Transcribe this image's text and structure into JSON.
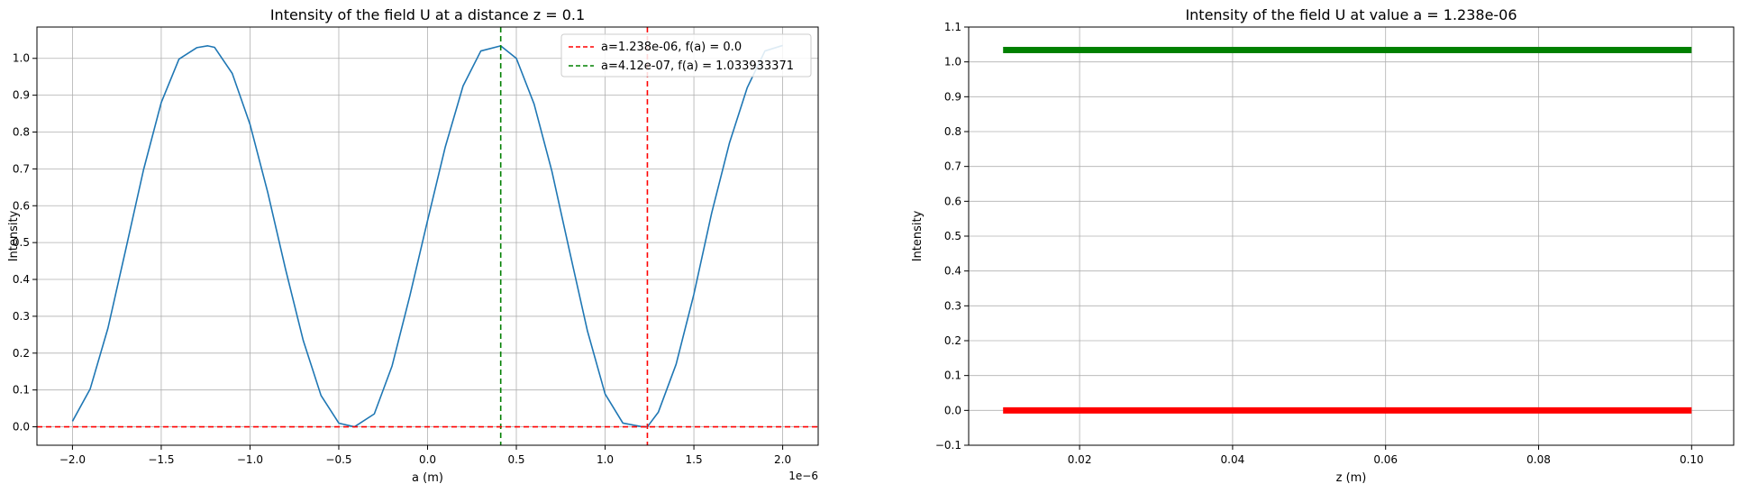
{
  "chart_data": [
    {
      "type": "line",
      "title": "Intensity of the field U at a distance z = 0.1",
      "xlabel": "a (m)",
      "ylabel": "Intensity",
      "x_offset_label": "1e−6",
      "xlim": [
        -2.2,
        2.2
      ],
      "ylim": [
        -0.05,
        1.085
      ],
      "x_ticks": [
        -2.0,
        -1.5,
        -1.0,
        -0.5,
        0.0,
        0.5,
        1.0,
        1.5,
        2.0
      ],
      "x_tick_labels": [
        "−2.0",
        "−1.5",
        "−1.0",
        "−0.5",
        "0.0",
        "0.5",
        "1.0",
        "1.5",
        "2.0"
      ],
      "y_ticks": [
        0.0,
        0.1,
        0.2,
        0.3,
        0.4,
        0.5,
        0.6,
        0.7,
        0.8,
        0.9,
        1.0
      ],
      "y_tick_labels": [
        "0.0",
        "0.1",
        "0.2",
        "0.3",
        "0.4",
        "0.5",
        "0.6",
        "0.7",
        "0.8",
        "0.9",
        "1.0"
      ],
      "grid": true,
      "legend_position": "top-right",
      "series": [
        {
          "color": "#1f77b4",
          "x": [
            -2.0,
            -1.9,
            -1.8,
            -1.7,
            -1.6,
            -1.5,
            -1.4,
            -1.3,
            -1.238,
            -1.2,
            -1.1,
            -1.0,
            -0.9,
            -0.8,
            -0.7,
            -0.6,
            -0.5,
            -0.412,
            -0.3,
            -0.2,
            -0.1,
            0.0,
            0.1,
            0.2,
            0.3,
            0.412,
            0.5,
            0.6,
            0.7,
            0.8,
            0.9,
            1.0,
            1.1,
            1.2,
            1.238,
            1.3,
            1.4,
            1.5,
            1.6,
            1.7,
            1.8,
            1.9,
            2.0
          ],
          "y": [
            0.015,
            0.103,
            0.268,
            0.481,
            0.697,
            0.88,
            0.998,
            1.029,
            1.034,
            1.03,
            0.959,
            0.821,
            0.636,
            0.428,
            0.234,
            0.085,
            0.01,
            0.0,
            0.035,
            0.165,
            0.355,
            0.56,
            0.76,
            0.925,
            1.02,
            1.034,
            1.0,
            0.876,
            0.694,
            0.476,
            0.261,
            0.089,
            0.01,
            0.001,
            0.0,
            0.04,
            0.17,
            0.36,
            0.58,
            0.77,
            0.92,
            1.02,
            1.035
          ]
        },
        {
          "name": "a=1.238e-06, f(a) = 0.0",
          "color": "#ff0000",
          "style": "dashed",
          "kind": "vline",
          "x": 1.238
        },
        {
          "name": "a=4.12e-07, f(a) = 1.033933371",
          "color": "#008000",
          "style": "dashed",
          "kind": "vline",
          "x": 0.412
        },
        {
          "color": "#ff0000",
          "style": "dashed",
          "kind": "hline",
          "y": 0.0
        }
      ]
    },
    {
      "type": "line",
      "title": "Intensity of the field U at value a = 1.238e-06",
      "xlabel": "z (m)",
      "ylabel": "Intensity",
      "xlim": [
        0.0055,
        0.1055
      ],
      "ylim": [
        -0.1,
        1.1
      ],
      "x_ticks": [
        0.02,
        0.04,
        0.06,
        0.08,
        0.1
      ],
      "x_tick_labels": [
        "0.02",
        "0.04",
        "0.06",
        "0.08",
        "0.10"
      ],
      "y_ticks": [
        -0.1,
        0.0,
        0.1,
        0.2,
        0.3,
        0.4,
        0.5,
        0.6,
        0.7,
        0.8,
        0.9,
        1.0,
        1.1
      ],
      "y_tick_labels": [
        "−0.1",
        "0.0",
        "0.1",
        "0.2",
        "0.3",
        "0.4",
        "0.5",
        "0.6",
        "0.7",
        "0.8",
        "0.9",
        "1.0",
        "1.1"
      ],
      "grid": true,
      "series": [
        {
          "color": "#008000",
          "x": [
            0.01,
            0.1
          ],
          "y": [
            1.034,
            1.034
          ]
        },
        {
          "color": "#ff0000",
          "x": [
            0.01,
            0.1
          ],
          "y": [
            0.0,
            0.0
          ]
        }
      ]
    }
  ]
}
